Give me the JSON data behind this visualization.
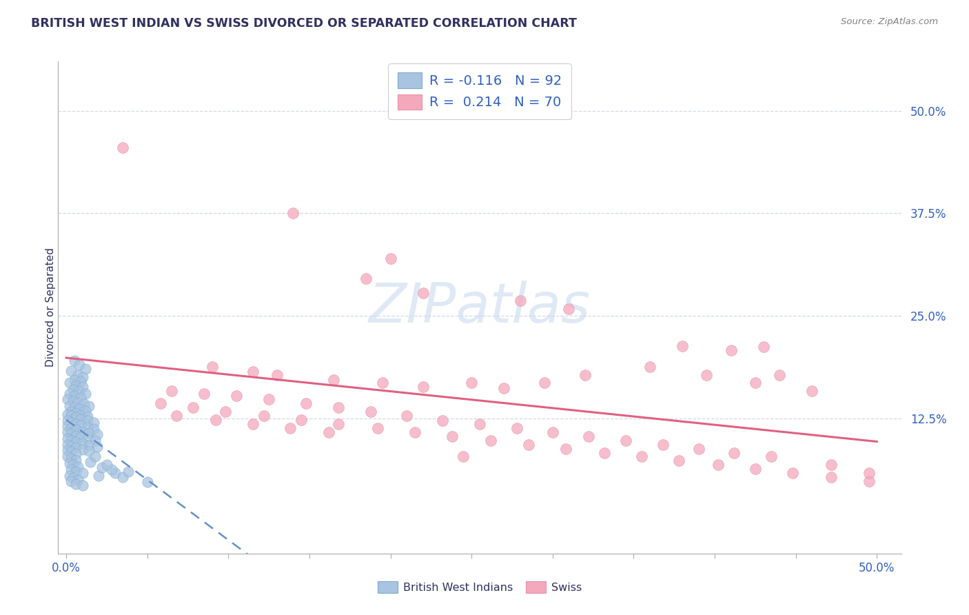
{
  "title": "BRITISH WEST INDIAN VS SWISS DIVORCED OR SEPARATED CORRELATION CHART",
  "source_text": "Source: ZipAtlas.com",
  "ylabel": "Divorced or Separated",
  "xlim": [
    -0.005,
    0.515
  ],
  "ylim": [
    -0.04,
    0.56
  ],
  "xtick_positions": [
    0.0,
    0.05,
    0.1,
    0.15,
    0.2,
    0.25,
    0.3,
    0.35,
    0.4,
    0.45,
    0.5
  ],
  "xticklabels": [
    "0.0%",
    "",
    "",
    "",
    "",
    "",
    "",
    "",
    "",
    "",
    "50.0%"
  ],
  "ytick_positions": [
    0.125,
    0.25,
    0.375,
    0.5
  ],
  "yticklabels": [
    "12.5%",
    "25.0%",
    "37.5%",
    "50.0%"
  ],
  "blue_color": "#a8c4e0",
  "pink_color": "#f4a8bc",
  "blue_edge": "#7aaad0",
  "pink_edge": "#e890a8",
  "blue_R": -0.116,
  "blue_N": 92,
  "pink_R": 0.214,
  "pink_N": 70,
  "background_color": "#ffffff",
  "grid_color": "#d0d8e8",
  "watermark": "ZIPatlas",
  "watermark_color_zip": "#c5d8ee",
  "watermark_color_atlas": "#a0c0e0",
  "legend_text_color": "#3060c0",
  "title_color": "#303060",
  "blue_line_color": "#6090c8",
  "pink_line_color": "#e06080",
  "blue_points": [
    [
      0.005,
      0.195
    ],
    [
      0.008,
      0.19
    ],
    [
      0.012,
      0.185
    ],
    [
      0.003,
      0.183
    ],
    [
      0.007,
      0.178
    ],
    [
      0.01,
      0.175
    ],
    [
      0.005,
      0.172
    ],
    [
      0.009,
      0.17
    ],
    [
      0.002,
      0.168
    ],
    [
      0.006,
      0.165
    ],
    [
      0.01,
      0.163
    ],
    [
      0.004,
      0.16
    ],
    [
      0.008,
      0.158
    ],
    [
      0.012,
      0.155
    ],
    [
      0.002,
      0.155
    ],
    [
      0.005,
      0.152
    ],
    [
      0.009,
      0.15
    ],
    [
      0.001,
      0.148
    ],
    [
      0.004,
      0.146
    ],
    [
      0.007,
      0.144
    ],
    [
      0.011,
      0.142
    ],
    [
      0.014,
      0.14
    ],
    [
      0.002,
      0.14
    ],
    [
      0.005,
      0.138
    ],
    [
      0.008,
      0.136
    ],
    [
      0.012,
      0.134
    ],
    [
      0.003,
      0.133
    ],
    [
      0.006,
      0.131
    ],
    [
      0.009,
      0.129
    ],
    [
      0.013,
      0.127
    ],
    [
      0.001,
      0.13
    ],
    [
      0.003,
      0.128
    ],
    [
      0.006,
      0.126
    ],
    [
      0.009,
      0.124
    ],
    [
      0.013,
      0.122
    ],
    [
      0.017,
      0.12
    ],
    [
      0.001,
      0.122
    ],
    [
      0.003,
      0.12
    ],
    [
      0.006,
      0.118
    ],
    [
      0.009,
      0.116
    ],
    [
      0.013,
      0.114
    ],
    [
      0.017,
      0.112
    ],
    [
      0.001,
      0.115
    ],
    [
      0.003,
      0.113
    ],
    [
      0.006,
      0.111
    ],
    [
      0.01,
      0.109
    ],
    [
      0.014,
      0.107
    ],
    [
      0.019,
      0.105
    ],
    [
      0.001,
      0.108
    ],
    [
      0.003,
      0.106
    ],
    [
      0.006,
      0.104
    ],
    [
      0.009,
      0.102
    ],
    [
      0.013,
      0.1
    ],
    [
      0.018,
      0.098
    ],
    [
      0.001,
      0.1
    ],
    [
      0.003,
      0.098
    ],
    [
      0.006,
      0.096
    ],
    [
      0.01,
      0.094
    ],
    [
      0.014,
      0.092
    ],
    [
      0.019,
      0.09
    ],
    [
      0.001,
      0.093
    ],
    [
      0.003,
      0.091
    ],
    [
      0.006,
      0.089
    ],
    [
      0.01,
      0.087
    ],
    [
      0.014,
      0.085
    ],
    [
      0.001,
      0.086
    ],
    [
      0.003,
      0.084
    ],
    [
      0.006,
      0.082
    ],
    [
      0.001,
      0.078
    ],
    [
      0.003,
      0.076
    ],
    [
      0.006,
      0.074
    ],
    [
      0.002,
      0.07
    ],
    [
      0.004,
      0.068
    ],
    [
      0.007,
      0.066
    ],
    [
      0.003,
      0.062
    ],
    [
      0.006,
      0.06
    ],
    [
      0.01,
      0.058
    ],
    [
      0.002,
      0.055
    ],
    [
      0.004,
      0.052
    ],
    [
      0.007,
      0.05
    ],
    [
      0.003,
      0.048
    ],
    [
      0.006,
      0.045
    ],
    [
      0.01,
      0.043
    ],
    [
      0.02,
      0.055
    ],
    [
      0.03,
      0.058
    ],
    [
      0.035,
      0.053
    ],
    [
      0.05,
      0.047
    ],
    [
      0.022,
      0.065
    ],
    [
      0.028,
      0.062
    ],
    [
      0.038,
      0.06
    ],
    [
      0.015,
      0.072
    ],
    [
      0.025,
      0.068
    ],
    [
      0.018,
      0.078
    ]
  ],
  "pink_points": [
    [
      0.035,
      0.455
    ],
    [
      0.14,
      0.375
    ],
    [
      0.2,
      0.32
    ],
    [
      0.185,
      0.295
    ],
    [
      0.22,
      0.278
    ],
    [
      0.28,
      0.268
    ],
    [
      0.31,
      0.258
    ],
    [
      0.38,
      0.213
    ],
    [
      0.41,
      0.208
    ],
    [
      0.43,
      0.212
    ],
    [
      0.09,
      0.188
    ],
    [
      0.115,
      0.182
    ],
    [
      0.13,
      0.178
    ],
    [
      0.165,
      0.172
    ],
    [
      0.195,
      0.168
    ],
    [
      0.22,
      0.163
    ],
    [
      0.25,
      0.168
    ],
    [
      0.27,
      0.162
    ],
    [
      0.295,
      0.168
    ],
    [
      0.32,
      0.178
    ],
    [
      0.36,
      0.188
    ],
    [
      0.395,
      0.178
    ],
    [
      0.425,
      0.168
    ],
    [
      0.46,
      0.158
    ],
    [
      0.44,
      0.178
    ],
    [
      0.065,
      0.158
    ],
    [
      0.085,
      0.155
    ],
    [
      0.105,
      0.152
    ],
    [
      0.125,
      0.148
    ],
    [
      0.148,
      0.143
    ],
    [
      0.168,
      0.138
    ],
    [
      0.188,
      0.133
    ],
    [
      0.21,
      0.128
    ],
    [
      0.232,
      0.122
    ],
    [
      0.255,
      0.118
    ],
    [
      0.278,
      0.113
    ],
    [
      0.3,
      0.108
    ],
    [
      0.322,
      0.103
    ],
    [
      0.345,
      0.098
    ],
    [
      0.368,
      0.093
    ],
    [
      0.39,
      0.088
    ],
    [
      0.412,
      0.083
    ],
    [
      0.435,
      0.078
    ],
    [
      0.058,
      0.143
    ],
    [
      0.078,
      0.138
    ],
    [
      0.098,
      0.133
    ],
    [
      0.122,
      0.128
    ],
    [
      0.145,
      0.123
    ],
    [
      0.168,
      0.118
    ],
    [
      0.192,
      0.113
    ],
    [
      0.215,
      0.108
    ],
    [
      0.238,
      0.103
    ],
    [
      0.262,
      0.098
    ],
    [
      0.285,
      0.093
    ],
    [
      0.308,
      0.088
    ],
    [
      0.332,
      0.083
    ],
    [
      0.355,
      0.078
    ],
    [
      0.378,
      0.073
    ],
    [
      0.402,
      0.068
    ],
    [
      0.425,
      0.063
    ],
    [
      0.448,
      0.058
    ],
    [
      0.472,
      0.053
    ],
    [
      0.495,
      0.048
    ],
    [
      0.068,
      0.128
    ],
    [
      0.092,
      0.123
    ],
    [
      0.115,
      0.118
    ],
    [
      0.138,
      0.113
    ],
    [
      0.162,
      0.108
    ],
    [
      0.245,
      0.078
    ],
    [
      0.472,
      0.068
    ],
    [
      0.495,
      0.058
    ]
  ]
}
